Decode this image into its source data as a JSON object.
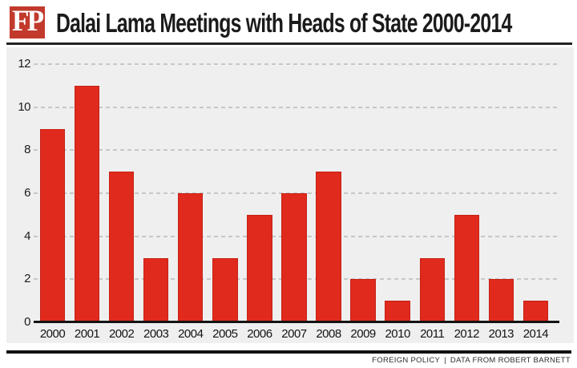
{
  "header": {
    "logo_text": "FP",
    "title": "Dalai Lama Meetings with Heads of State 2000-2014"
  },
  "footer": {
    "source": "FOREIGN POLICY",
    "separator": "|",
    "attribution": "DATA FROM ROBERT BARNETT"
  },
  "colors": {
    "bar_red": "#e02a1d",
    "logo_red": "#c23a2c",
    "plot_background": "#efefef",
    "gridline_gray": "#c7c7c7",
    "text_dark": "#1a1a1a"
  },
  "chart_data": {
    "type": "bar",
    "title": "Dalai Lama Meetings with Heads of State 2000-2014",
    "categories": [
      "2000",
      "2001",
      "2002",
      "2003",
      "2004",
      "2005",
      "2006",
      "2007",
      "2008",
      "2009",
      "2010",
      "2011",
      "2012",
      "2013",
      "2014"
    ],
    "values": [
      9,
      11,
      7,
      3,
      6,
      3,
      5,
      6,
      7,
      2,
      1,
      3,
      5,
      2,
      1
    ],
    "xlabel": "",
    "ylabel": "",
    "ylim": [
      0,
      12
    ],
    "yticks": [
      0,
      2,
      4,
      6,
      8,
      10,
      12
    ],
    "grid": "horizontal-dashed",
    "legend": "none"
  }
}
